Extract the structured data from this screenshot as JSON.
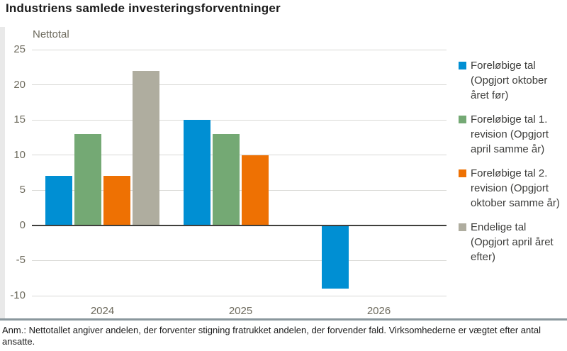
{
  "page": {
    "title": "Industriens samlede investeringsforventninger",
    "footnote": "Anm.: Nettotallet angiver andelen, der forventer stigning fratrukket andelen, der forvender fald. Virksomhederne er vægtet efter antal ansatte."
  },
  "chart_data": {
    "type": "bar",
    "title": "Industriens samlede investeringsforventninger",
    "ylabel": "Nettotal",
    "xlabel": "",
    "categories": [
      "2024",
      "2025",
      "2026"
    ],
    "series": [
      {
        "name": "Foreløbige tal (Opgjort oktober året før)",
        "color": "#008fd3",
        "values": [
          7,
          15,
          -9
        ]
      },
      {
        "name": "Foreløbige tal 1. revision (Opgjort april samme år)",
        "color": "#74a974",
        "values": [
          13,
          13,
          null
        ]
      },
      {
        "name": "Foreløbige tal 2. revision (Opgjort oktober samme år)",
        "color": "#ee7103",
        "values": [
          7,
          10,
          null
        ]
      },
      {
        "name": "Endelige tal (Opgjort april året efter)",
        "color": "#afad9f",
        "values": [
          22,
          null,
          null
        ]
      }
    ],
    "ylim": [
      -10,
      25
    ],
    "yticks": [
      25,
      20,
      15,
      10,
      5,
      0,
      -5,
      -10
    ],
    "grid": true,
    "legend_position": "right"
  },
  "colors": {
    "gridline": "#d9d9d6",
    "zero_line": "#3f3f3c",
    "axis_text": "#6e6b5e",
    "separator": "#8a979d"
  }
}
